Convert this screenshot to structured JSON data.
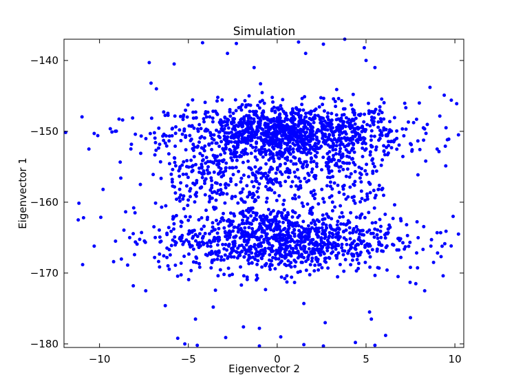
{
  "chart_data": {
    "type": "scatter",
    "title": "Simulation",
    "xlabel": "Eigenvector 2",
    "ylabel": "Eigenvector 1",
    "xlim": [
      -12,
      10.5
    ],
    "ylim": [
      -180.5,
      -137
    ],
    "xticks": [
      -10,
      -5,
      0,
      5,
      10
    ],
    "yticks": [
      -180,
      -170,
      -160,
      -150,
      -140
    ],
    "xtick_labels": [
      "−10",
      "−5",
      "0",
      "5",
      "10"
    ],
    "ytick_labels": [
      "−180",
      "−170",
      "−160",
      "−150",
      "−140"
    ],
    "grid": false,
    "marker_color": "#0000ff",
    "clusters": [
      {
        "center": [
          0.5,
          -150.5
        ],
        "spread": [
          3.3,
          2.2
        ],
        "count": 1300
      },
      {
        "center": [
          0.0,
          -165.2
        ],
        "spread": [
          3.3,
          2.4
        ],
        "count": 1100
      }
    ],
    "diffuse_band": {
      "x": [
        -6,
        6
      ],
      "y": [
        -160,
        -154
      ],
      "count": 320
    },
    "sparse_points": [
      [
        -11.2,
        -162.5
      ],
      [
        -10.9,
        -162.2
      ],
      [
        -10.6,
        -152.5
      ],
      [
        -10.3,
        -150.3
      ],
      [
        -10.1,
        -150.6
      ],
      [
        -10.3,
        -166.2
      ],
      [
        -9.8,
        -158.2
      ],
      [
        -9.3,
        -150.1
      ],
      [
        -8.7,
        -148.4
      ],
      [
        -8.3,
        -165.0
      ],
      [
        -7.2,
        -140.3
      ],
      [
        -7.1,
        -143.2
      ],
      [
        -6.8,
        -144.0
      ],
      [
        -6.9,
        -167.8
      ],
      [
        -8.1,
        -171.8
      ],
      [
        -5.8,
        -140.5
      ],
      [
        -4.2,
        -137.5
      ],
      [
        -2.8,
        -139.0
      ],
      [
        -2.3,
        -137.6
      ],
      [
        -1.3,
        -141.0
      ],
      [
        1.2,
        -137.4
      ],
      [
        1.6,
        -139.0
      ],
      [
        2.6,
        -137.7
      ],
      [
        4.9,
        -138.2
      ],
      [
        3.8,
        -137.0
      ],
      [
        5.5,
        -141.0
      ],
      [
        5.0,
        -140.0
      ],
      [
        9.4,
        -144.9
      ],
      [
        9.8,
        -145.6
      ],
      [
        10.1,
        -146.1
      ],
      [
        8.6,
        -143.8
      ],
      [
        8.0,
        -146.0
      ],
      [
        9.5,
        -149.5
      ],
      [
        10.2,
        -150.5
      ],
      [
        9.0,
        -152.5
      ],
      [
        9.2,
        -164.3
      ],
      [
        9.9,
        -162.0
      ],
      [
        10.2,
        -164.5
      ],
      [
        8.8,
        -168.5
      ],
      [
        7.5,
        -176.3
      ],
      [
        8.3,
        -172.5
      ],
      [
        7.8,
        -171.5
      ],
      [
        9.5,
        -164.1
      ],
      [
        9.0,
        -164.3
      ],
      [
        -5.6,
        -179.2
      ],
      [
        -5.2,
        -180.0
      ],
      [
        -4.5,
        -180.2
      ],
      [
        -2.9,
        -179.1
      ],
      [
        -1.0,
        -180.3
      ],
      [
        0.2,
        -179.0
      ],
      [
        1.5,
        -180.1
      ],
      [
        2.6,
        -180.3
      ],
      [
        4.4,
        -179.8
      ],
      [
        5.5,
        -180.2
      ],
      [
        6.1,
        -178.8
      ],
      [
        5.3,
        -176.5
      ],
      [
        5.2,
        -175.5
      ],
      [
        -4.6,
        -176.5
      ],
      [
        -1.9,
        -177.6
      ],
      [
        -1.0,
        -177.8
      ],
      [
        1.5,
        -174.3
      ],
      [
        2.7,
        -177.0
      ],
      [
        -7.4,
        -172.5
      ],
      [
        -6.3,
        -174.6
      ],
      [
        -3.6,
        -174.8
      ],
      [
        6.8,
        -170.5
      ],
      [
        7.5,
        -169.2
      ],
      [
        -9.1,
        -165.5
      ],
      [
        -8.8,
        -156.6
      ],
      [
        -7.7,
        -157.5
      ]
    ]
  }
}
